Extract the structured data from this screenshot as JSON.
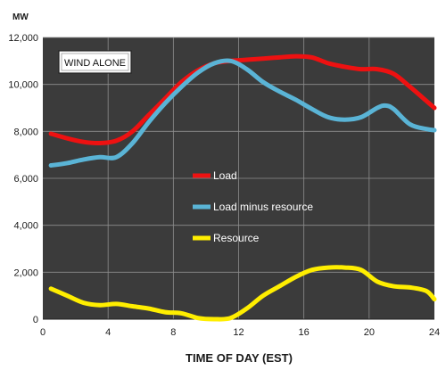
{
  "chart_data": {
    "type": "line",
    "annotation": "WIND ALONE",
    "unit_label": "MW",
    "xlabel": "TIME OF DAY (EST)",
    "ylabel": "",
    "xlim": [
      0,
      24
    ],
    "ylim": [
      0,
      12000
    ],
    "x_ticks": [
      "0",
      "4",
      "8",
      "12",
      "16",
      "20",
      "24"
    ],
    "y_ticks": [
      "0",
      "2,000",
      "4,000",
      "6,000",
      "8,000",
      "10,000",
      "12,000"
    ],
    "grid": true,
    "legend_position": "center",
    "series": [
      {
        "name": "Load",
        "color": "#ee1111",
        "x": [
          0.5,
          1.5,
          2.5,
          3.5,
          4.5,
          5.5,
          6.5,
          7.5,
          8.5,
          9.5,
          10.5,
          11.5,
          12.5,
          13.5,
          14.5,
          15.5,
          16.5,
          17.5,
          18.5,
          19.5,
          20.5,
          21.5,
          22.5,
          23.5,
          24
        ],
        "values": [
          7900,
          7700,
          7550,
          7500,
          7600,
          8000,
          8700,
          9400,
          10100,
          10600,
          10900,
          11000,
          11050,
          11100,
          11150,
          11200,
          11150,
          10900,
          10750,
          10650,
          10650,
          10450,
          9900,
          9300,
          9000
        ]
      },
      {
        "name": "Load minus resource",
        "color": "#5ab4d6",
        "x": [
          0.5,
          1.5,
          2.5,
          3.5,
          4.5,
          5.5,
          6.5,
          7.5,
          8.5,
          9.5,
          10.5,
          11.5,
          12.5,
          13.5,
          14.5,
          15.5,
          16.5,
          17.5,
          18.5,
          19.5,
          20.5,
          21,
          21.5,
          22.5,
          23.5,
          24
        ],
        "values": [
          6550,
          6650,
          6800,
          6900,
          6900,
          7500,
          8400,
          9200,
          9900,
          10500,
          10900,
          11000,
          10650,
          10100,
          9700,
          9350,
          8950,
          8600,
          8500,
          8600,
          9000,
          9100,
          8950,
          8300,
          8100,
          8050
        ]
      },
      {
        "name": "Resource",
        "color": "#ffee00",
        "x": [
          0.5,
          1.5,
          2.5,
          3.5,
          4.5,
          5.5,
          6.5,
          7.5,
          8.5,
          9.5,
          10.5,
          11.5,
          12.5,
          13.5,
          14.5,
          15.5,
          16.5,
          17.5,
          18.5,
          19.5,
          20.5,
          21.5,
          22.5,
          23.5,
          24
        ],
        "values": [
          1300,
          1000,
          700,
          600,
          650,
          550,
          450,
          300,
          250,
          50,
          0,
          50,
          450,
          1000,
          1400,
          1800,
          2100,
          2200,
          2200,
          2100,
          1600,
          1400,
          1350,
          1200,
          850
        ]
      }
    ]
  }
}
